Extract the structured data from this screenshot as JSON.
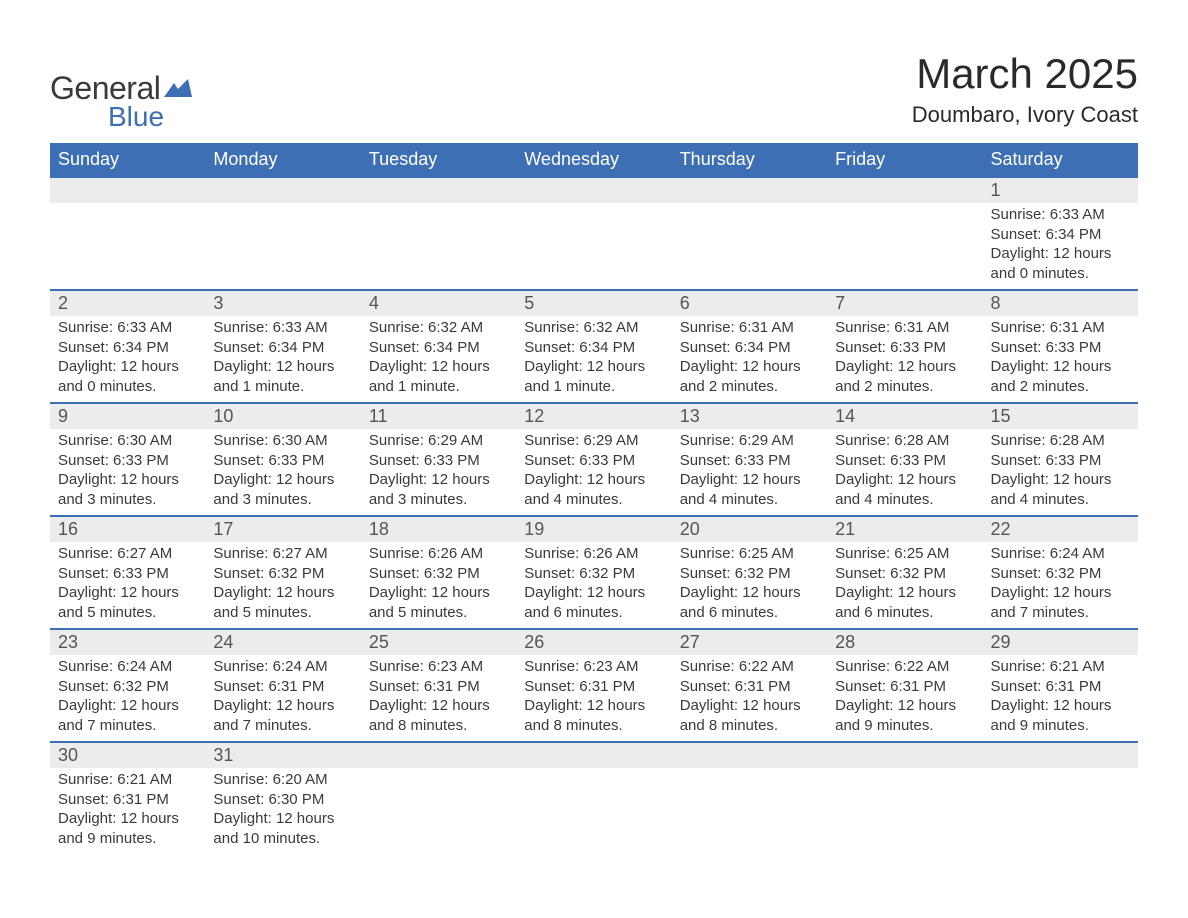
{
  "logo": {
    "text1": "General",
    "text2": "Blue",
    "icon_color": "#3d6fb4"
  },
  "title": "March 2025",
  "location": "Doumbaro, Ivory Coast",
  "colors": {
    "header_bg": "#3d6fb4",
    "header_text": "#ffffff",
    "daynum_bg": "#ececec",
    "row_divider": "#3d6fb4",
    "text": "#3a3a3a"
  },
  "day_headers": [
    "Sunday",
    "Monday",
    "Tuesday",
    "Wednesday",
    "Thursday",
    "Friday",
    "Saturday"
  ],
  "weeks": [
    {
      "days": [
        null,
        null,
        null,
        null,
        null,
        null,
        {
          "n": "1",
          "sunrise": "Sunrise: 6:33 AM",
          "sunset": "Sunset: 6:34 PM",
          "daylight": "Daylight: 12 hours and 0 minutes."
        }
      ]
    },
    {
      "days": [
        {
          "n": "2",
          "sunrise": "Sunrise: 6:33 AM",
          "sunset": "Sunset: 6:34 PM",
          "daylight": "Daylight: 12 hours and 0 minutes."
        },
        {
          "n": "3",
          "sunrise": "Sunrise: 6:33 AM",
          "sunset": "Sunset: 6:34 PM",
          "daylight": "Daylight: 12 hours and 1 minute."
        },
        {
          "n": "4",
          "sunrise": "Sunrise: 6:32 AM",
          "sunset": "Sunset: 6:34 PM",
          "daylight": "Daylight: 12 hours and 1 minute."
        },
        {
          "n": "5",
          "sunrise": "Sunrise: 6:32 AM",
          "sunset": "Sunset: 6:34 PM",
          "daylight": "Daylight: 12 hours and 1 minute."
        },
        {
          "n": "6",
          "sunrise": "Sunrise: 6:31 AM",
          "sunset": "Sunset: 6:34 PM",
          "daylight": "Daylight: 12 hours and 2 minutes."
        },
        {
          "n": "7",
          "sunrise": "Sunrise: 6:31 AM",
          "sunset": "Sunset: 6:33 PM",
          "daylight": "Daylight: 12 hours and 2 minutes."
        },
        {
          "n": "8",
          "sunrise": "Sunrise: 6:31 AM",
          "sunset": "Sunset: 6:33 PM",
          "daylight": "Daylight: 12 hours and 2 minutes."
        }
      ]
    },
    {
      "days": [
        {
          "n": "9",
          "sunrise": "Sunrise: 6:30 AM",
          "sunset": "Sunset: 6:33 PM",
          "daylight": "Daylight: 12 hours and 3 minutes."
        },
        {
          "n": "10",
          "sunrise": "Sunrise: 6:30 AM",
          "sunset": "Sunset: 6:33 PM",
          "daylight": "Daylight: 12 hours and 3 minutes."
        },
        {
          "n": "11",
          "sunrise": "Sunrise: 6:29 AM",
          "sunset": "Sunset: 6:33 PM",
          "daylight": "Daylight: 12 hours and 3 minutes."
        },
        {
          "n": "12",
          "sunrise": "Sunrise: 6:29 AM",
          "sunset": "Sunset: 6:33 PM",
          "daylight": "Daylight: 12 hours and 4 minutes."
        },
        {
          "n": "13",
          "sunrise": "Sunrise: 6:29 AM",
          "sunset": "Sunset: 6:33 PM",
          "daylight": "Daylight: 12 hours and 4 minutes."
        },
        {
          "n": "14",
          "sunrise": "Sunrise: 6:28 AM",
          "sunset": "Sunset: 6:33 PM",
          "daylight": "Daylight: 12 hours and 4 minutes."
        },
        {
          "n": "15",
          "sunrise": "Sunrise: 6:28 AM",
          "sunset": "Sunset: 6:33 PM",
          "daylight": "Daylight: 12 hours and 4 minutes."
        }
      ]
    },
    {
      "days": [
        {
          "n": "16",
          "sunrise": "Sunrise: 6:27 AM",
          "sunset": "Sunset: 6:33 PM",
          "daylight": "Daylight: 12 hours and 5 minutes."
        },
        {
          "n": "17",
          "sunrise": "Sunrise: 6:27 AM",
          "sunset": "Sunset: 6:32 PM",
          "daylight": "Daylight: 12 hours and 5 minutes."
        },
        {
          "n": "18",
          "sunrise": "Sunrise: 6:26 AM",
          "sunset": "Sunset: 6:32 PM",
          "daylight": "Daylight: 12 hours and 5 minutes."
        },
        {
          "n": "19",
          "sunrise": "Sunrise: 6:26 AM",
          "sunset": "Sunset: 6:32 PM",
          "daylight": "Daylight: 12 hours and 6 minutes."
        },
        {
          "n": "20",
          "sunrise": "Sunrise: 6:25 AM",
          "sunset": "Sunset: 6:32 PM",
          "daylight": "Daylight: 12 hours and 6 minutes."
        },
        {
          "n": "21",
          "sunrise": "Sunrise: 6:25 AM",
          "sunset": "Sunset: 6:32 PM",
          "daylight": "Daylight: 12 hours and 6 minutes."
        },
        {
          "n": "22",
          "sunrise": "Sunrise: 6:24 AM",
          "sunset": "Sunset: 6:32 PM",
          "daylight": "Daylight: 12 hours and 7 minutes."
        }
      ]
    },
    {
      "days": [
        {
          "n": "23",
          "sunrise": "Sunrise: 6:24 AM",
          "sunset": "Sunset: 6:32 PM",
          "daylight": "Daylight: 12 hours and 7 minutes."
        },
        {
          "n": "24",
          "sunrise": "Sunrise: 6:24 AM",
          "sunset": "Sunset: 6:31 PM",
          "daylight": "Daylight: 12 hours and 7 minutes."
        },
        {
          "n": "25",
          "sunrise": "Sunrise: 6:23 AM",
          "sunset": "Sunset: 6:31 PM",
          "daylight": "Daylight: 12 hours and 8 minutes."
        },
        {
          "n": "26",
          "sunrise": "Sunrise: 6:23 AM",
          "sunset": "Sunset: 6:31 PM",
          "daylight": "Daylight: 12 hours and 8 minutes."
        },
        {
          "n": "27",
          "sunrise": "Sunrise: 6:22 AM",
          "sunset": "Sunset: 6:31 PM",
          "daylight": "Daylight: 12 hours and 8 minutes."
        },
        {
          "n": "28",
          "sunrise": "Sunrise: 6:22 AM",
          "sunset": "Sunset: 6:31 PM",
          "daylight": "Daylight: 12 hours and 9 minutes."
        },
        {
          "n": "29",
          "sunrise": "Sunrise: 6:21 AM",
          "sunset": "Sunset: 6:31 PM",
          "daylight": "Daylight: 12 hours and 9 minutes."
        }
      ]
    },
    {
      "days": [
        {
          "n": "30",
          "sunrise": "Sunrise: 6:21 AM",
          "sunset": "Sunset: 6:31 PM",
          "daylight": "Daylight: 12 hours and 9 minutes."
        },
        {
          "n": "31",
          "sunrise": "Sunrise: 6:20 AM",
          "sunset": "Sunset: 6:30 PM",
          "daylight": "Daylight: 12 hours and 10 minutes."
        },
        null,
        null,
        null,
        null,
        null
      ]
    }
  ]
}
